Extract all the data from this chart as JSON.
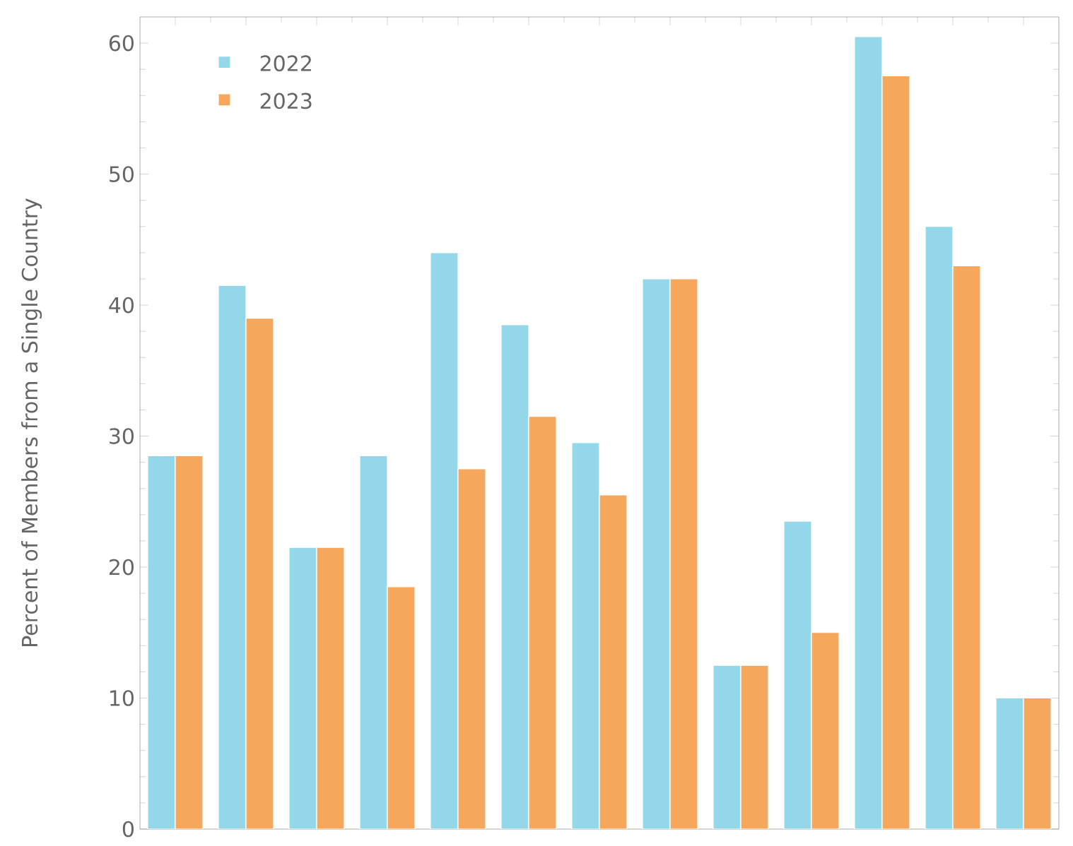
{
  "chart_data": {
    "type": "bar",
    "ylabel": "Percent of Members from a Single Country",
    "categories": [
      null,
      null,
      null,
      null,
      null,
      null,
      null,
      null,
      null,
      null,
      null,
      null,
      null
    ],
    "series": [
      {
        "name": "2022",
        "color": "#93d7e8",
        "values": [
          28.5,
          41.5,
          21.5,
          28.5,
          44,
          38.5,
          29.5,
          42,
          12.5,
          23.5,
          60.5,
          46,
          10
        ]
      },
      {
        "name": "2023",
        "color": "#f7a75c",
        "values": [
          28.5,
          39,
          21.5,
          18.5,
          27.5,
          31.5,
          25.5,
          42,
          12.5,
          15,
          57.5,
          43,
          10
        ]
      }
    ],
    "ylim": [
      0,
      62
    ],
    "yticks": [
      0,
      10,
      20,
      30,
      40,
      50,
      60
    ],
    "legend": "top left",
    "tick_labels": "y"
  }
}
